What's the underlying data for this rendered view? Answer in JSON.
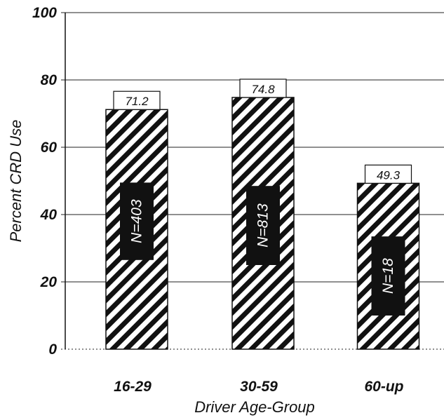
{
  "chart_data": {
    "type": "bar",
    "categories": [
      "16-29",
      "30-59",
      "60-up"
    ],
    "values": [
      71.2,
      74.8,
      49.3
    ],
    "value_labels": [
      "71.2",
      "74.8",
      "49.3"
    ],
    "sample_labels": [
      "N=403",
      "N=813",
      "N=18"
    ],
    "xlabel": "Driver Age-Group",
    "ylabel": "Percent CRD Use",
    "ylim": [
      0,
      100
    ],
    "yticks": [
      0,
      20,
      40,
      60,
      80,
      100
    ],
    "grid": true,
    "bar_fill": "diagonal-hatch",
    "colors": {
      "bar_stroke": "#111111",
      "hatch": "#111111",
      "n_box": "#111111",
      "grid": "#222222"
    }
  }
}
